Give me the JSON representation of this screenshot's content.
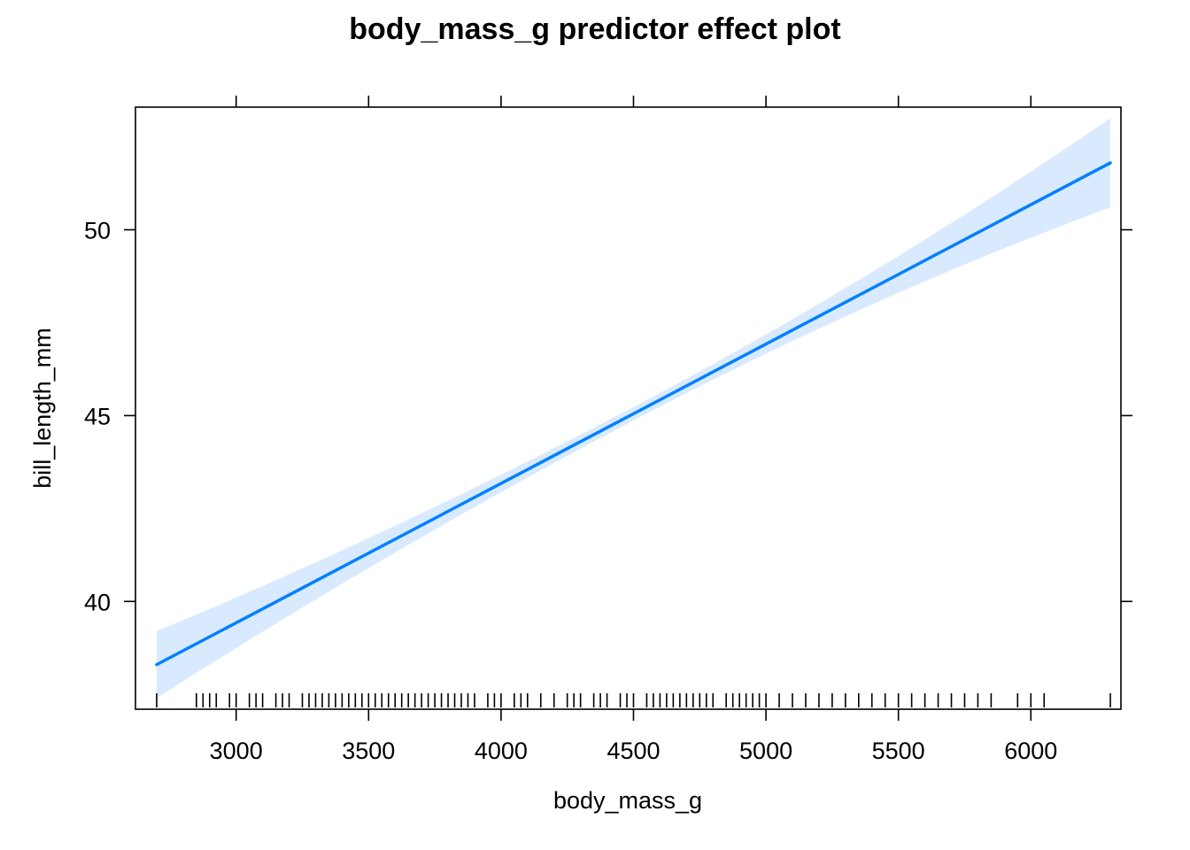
{
  "chart_data": {
    "type": "line",
    "title": "body_mass_g predictor effect plot",
    "xlabel": "body_mass_g",
    "ylabel": "bill_length_mm",
    "xlim": [
      2620,
      6340
    ],
    "ylim": [
      37.1,
      53.3
    ],
    "xticks": [
      3000,
      3500,
      4000,
      4500,
      5000,
      5500,
      6000
    ],
    "yticks": [
      40,
      45,
      50
    ],
    "x_tick_labels": [
      "3000",
      "3500",
      "4000",
      "4500",
      "5000",
      "5500",
      "6000"
    ],
    "y_tick_labels": [
      "40",
      "45",
      "50"
    ],
    "grid": false,
    "series": [
      {
        "x": [
          2700,
          6300
        ],
        "y": [
          38.3,
          51.8
        ],
        "lower": [
          37.4,
          50.6
        ],
        "upper": [
          39.2,
          52.9
        ],
        "color": "#0080ff",
        "band_color": "#d9eaff"
      }
    ],
    "rug_x": [
      2700,
      2850,
      2875,
      2900,
      2925,
      2975,
      3000,
      3050,
      3075,
      3100,
      3150,
      3175,
      3200,
      3250,
      3275,
      3300,
      3325,
      3350,
      3375,
      3400,
      3425,
      3450,
      3475,
      3500,
      3525,
      3550,
      3575,
      3600,
      3625,
      3650,
      3675,
      3700,
      3725,
      3750,
      3775,
      3800,
      3825,
      3850,
      3875,
      3900,
      3950,
      3975,
      4000,
      4050,
      4075,
      4100,
      4150,
      4200,
      4250,
      4275,
      4300,
      4350,
      4375,
      4400,
      4450,
      4475,
      4500,
      4550,
      4575,
      4600,
      4625,
      4650,
      4675,
      4700,
      4725,
      4750,
      4775,
      4800,
      4850,
      4875,
      4900,
      4925,
      4950,
      4975,
      5000,
      5050,
      5100,
      5150,
      5200,
      5250,
      5300,
      5350,
      5400,
      5450,
      5500,
      5550,
      5600,
      5650,
      5700,
      5750,
      5800,
      5850,
      5950,
      6000,
      6050,
      6300
    ]
  }
}
